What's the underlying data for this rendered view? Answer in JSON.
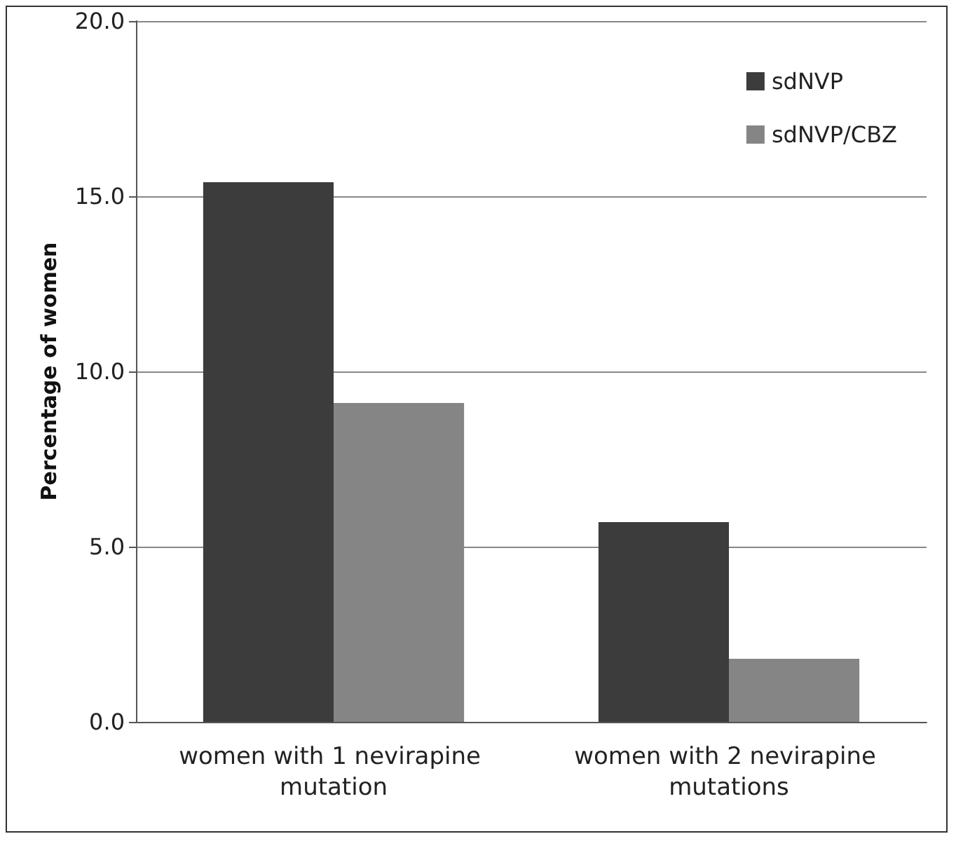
{
  "chart_data": {
    "type": "bar",
    "ylabel": "Percentage of women",
    "categories": [
      "women with 1 nevirapine mutation",
      "women with 2 nevirapine mutations"
    ],
    "series": [
      {
        "name": "sdNVP",
        "color": "#3c3c3c",
        "values": [
          15.4,
          5.7
        ]
      },
      {
        "name": "sdNVP/CBZ",
        "color": "#858585",
        "values": [
          9.1,
          1.8
        ]
      }
    ],
    "ylim": [
      0,
      20
    ],
    "yticks": [
      {
        "value": 0,
        "label": "0.0"
      },
      {
        "value": 5,
        "label": "5.0"
      },
      {
        "value": 10,
        "label": "10.0"
      },
      {
        "value": 15,
        "label": "15.0"
      },
      {
        "value": 20,
        "label": "20.0"
      }
    ],
    "grid": "y",
    "legend": "top right"
  }
}
